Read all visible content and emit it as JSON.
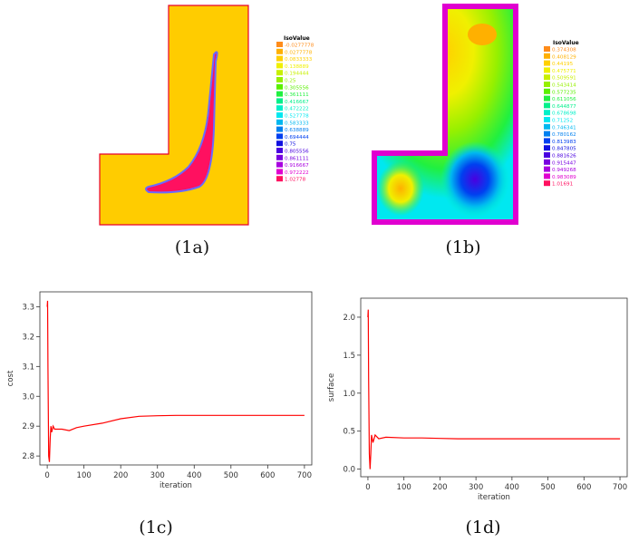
{
  "captions": {
    "a": "(1a)",
    "b": "(1b)",
    "c": "(1c)",
    "d": "(1d)"
  },
  "legend_a": {
    "title": "IsoValue",
    "values": [
      "-0.0277778",
      "0.0277778",
      "0.0833333",
      "0.138889",
      "0.194444",
      "0.25",
      "0.305556",
      "0.361111",
      "0.416667",
      "0.472222",
      "0.527778",
      "0.583333",
      "0.638889",
      "0.694444",
      "0.75",
      "0.805556",
      "0.861111",
      "0.916667",
      "0.972222",
      "1.02778"
    ]
  },
  "legend_b": {
    "title": "IsoValue",
    "values": [
      "0.374308",
      "0.408129",
      "0.44195",
      "0.475771",
      "0.509591",
      "0.543414",
      "0.577235",
      "0.611056",
      "0.644877",
      "0.678698",
      "0.71252",
      "0.746341",
      "0.780162",
      "0.813983",
      "0.847805",
      "0.881626",
      "0.915447",
      "0.949268",
      "0.983089",
      "1.01691"
    ]
  },
  "legend_colors": [
    "#ff8c1a",
    "#ffb000",
    "#ffd000",
    "#f0f000",
    "#c8f000",
    "#96f000",
    "#5af000",
    "#20f040",
    "#00f08a",
    "#00f0c8",
    "#00e8f0",
    "#00b8f0",
    "#0080f0",
    "#0040f0",
    "#1010e0",
    "#4a00e0",
    "#7800e0",
    "#a800e0",
    "#e000d0",
    "#ff1060"
  ],
  "chart_data": [
    {
      "type": "line",
      "xlabel": "iteration",
      "ylabel": "cost",
      "xlim": [
        -20,
        720
      ],
      "ylim": [
        2.77,
        3.35
      ],
      "xticks": [
        0,
        100,
        200,
        300,
        400,
        500,
        600,
        700
      ],
      "yticks": [
        2.8,
        2.9,
        3.0,
        3.1,
        3.2,
        3.3
      ],
      "color": "#ff0000",
      "series": [
        {
          "x": [
            0,
            1,
            2,
            4,
            6,
            8,
            10,
            12,
            16,
            20,
            30,
            40,
            60,
            80,
            100,
            150,
            200,
            250,
            300,
            350,
            400,
            500,
            600,
            700
          ],
          "y": [
            3.3,
            3.32,
            3.1,
            2.8,
            2.78,
            2.86,
            2.9,
            2.88,
            2.9,
            2.89,
            2.89,
            2.89,
            2.885,
            2.895,
            2.9,
            2.91,
            2.925,
            2.933,
            2.935,
            2.936,
            2.936,
            2.936,
            2.936,
            2.936
          ]
        }
      ]
    },
    {
      "type": "line",
      "xlabel": "iteration",
      "ylabel": "surface",
      "xlim": [
        -20,
        720
      ],
      "ylim": [
        -0.1,
        2.25
      ],
      "xticks": [
        0,
        100,
        200,
        300,
        400,
        500,
        600,
        700
      ],
      "yticks": [
        0.0,
        0.5,
        1.0,
        1.5,
        2.0
      ],
      "color": "#ff0000",
      "series": [
        {
          "x": [
            0,
            1,
            2,
            4,
            6,
            8,
            10,
            14,
            20,
            30,
            50,
            100,
            150,
            200,
            250,
            300,
            400,
            500,
            600,
            700
          ],
          "y": [
            2.0,
            2.1,
            1.2,
            0.2,
            0.0,
            0.2,
            0.45,
            0.35,
            0.45,
            0.4,
            0.42,
            0.41,
            0.41,
            0.405,
            0.4,
            0.4,
            0.4,
            0.4,
            0.4,
            0.4
          ]
        }
      ]
    }
  ]
}
